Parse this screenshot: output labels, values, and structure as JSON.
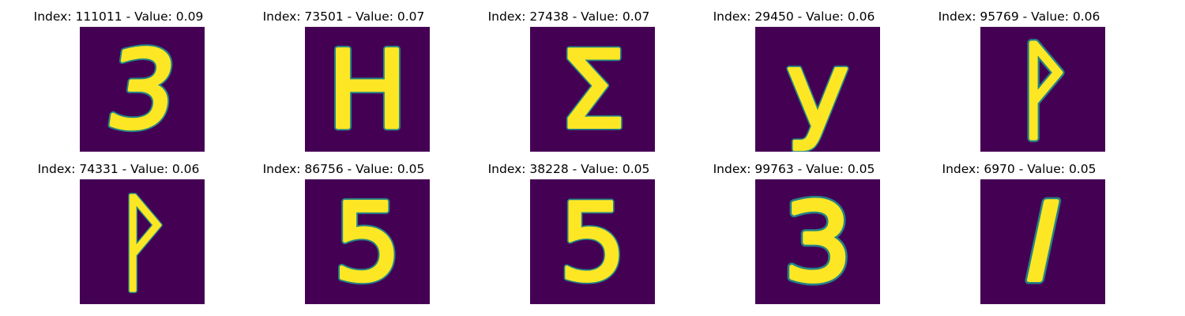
{
  "figure": {
    "background_color": "#440154",
    "stroke_color": "#fde725",
    "edge_color": "#21918c",
    "panels": [
      {
        "title": "Index: 111011 - Value: 0.09",
        "glyph": "3",
        "skew": -8,
        "stroke": 7
      },
      {
        "title": "Index: 73501 - Value: 0.07",
        "glyph": "H",
        "skew": 0,
        "stroke": 7
      },
      {
        "title": "Index: 27438 - Value: 0.07",
        "glyph": "Σ",
        "skew": 0,
        "stroke": 6
      },
      {
        "title": "Index: 29450 - Value: 0.06",
        "glyph": "y",
        "skew": 0,
        "stroke": 6
      },
      {
        "title": "Index: 95769 - Value: 0.06",
        "glyph": "ᚹ",
        "skew": 0,
        "stroke": 8
      },
      {
        "title": "Index: 74331 - Value: 0.06",
        "glyph": "ᚹ",
        "skew": 0,
        "stroke": 5
      },
      {
        "title": "Index: 86756 - Value: 0.05",
        "glyph": "5",
        "skew": 0,
        "stroke": 7
      },
      {
        "title": "Index: 38228 - Value: 0.05",
        "glyph": "5",
        "skew": 0,
        "stroke": 6
      },
      {
        "title": "Index: 99763 - Value: 0.05",
        "glyph": "3",
        "skew": 0,
        "stroke": 9
      },
      {
        "title": "Index: 6970 - Value: 0.05",
        "glyph": "I",
        "skew": -12,
        "stroke": 9
      }
    ]
  }
}
